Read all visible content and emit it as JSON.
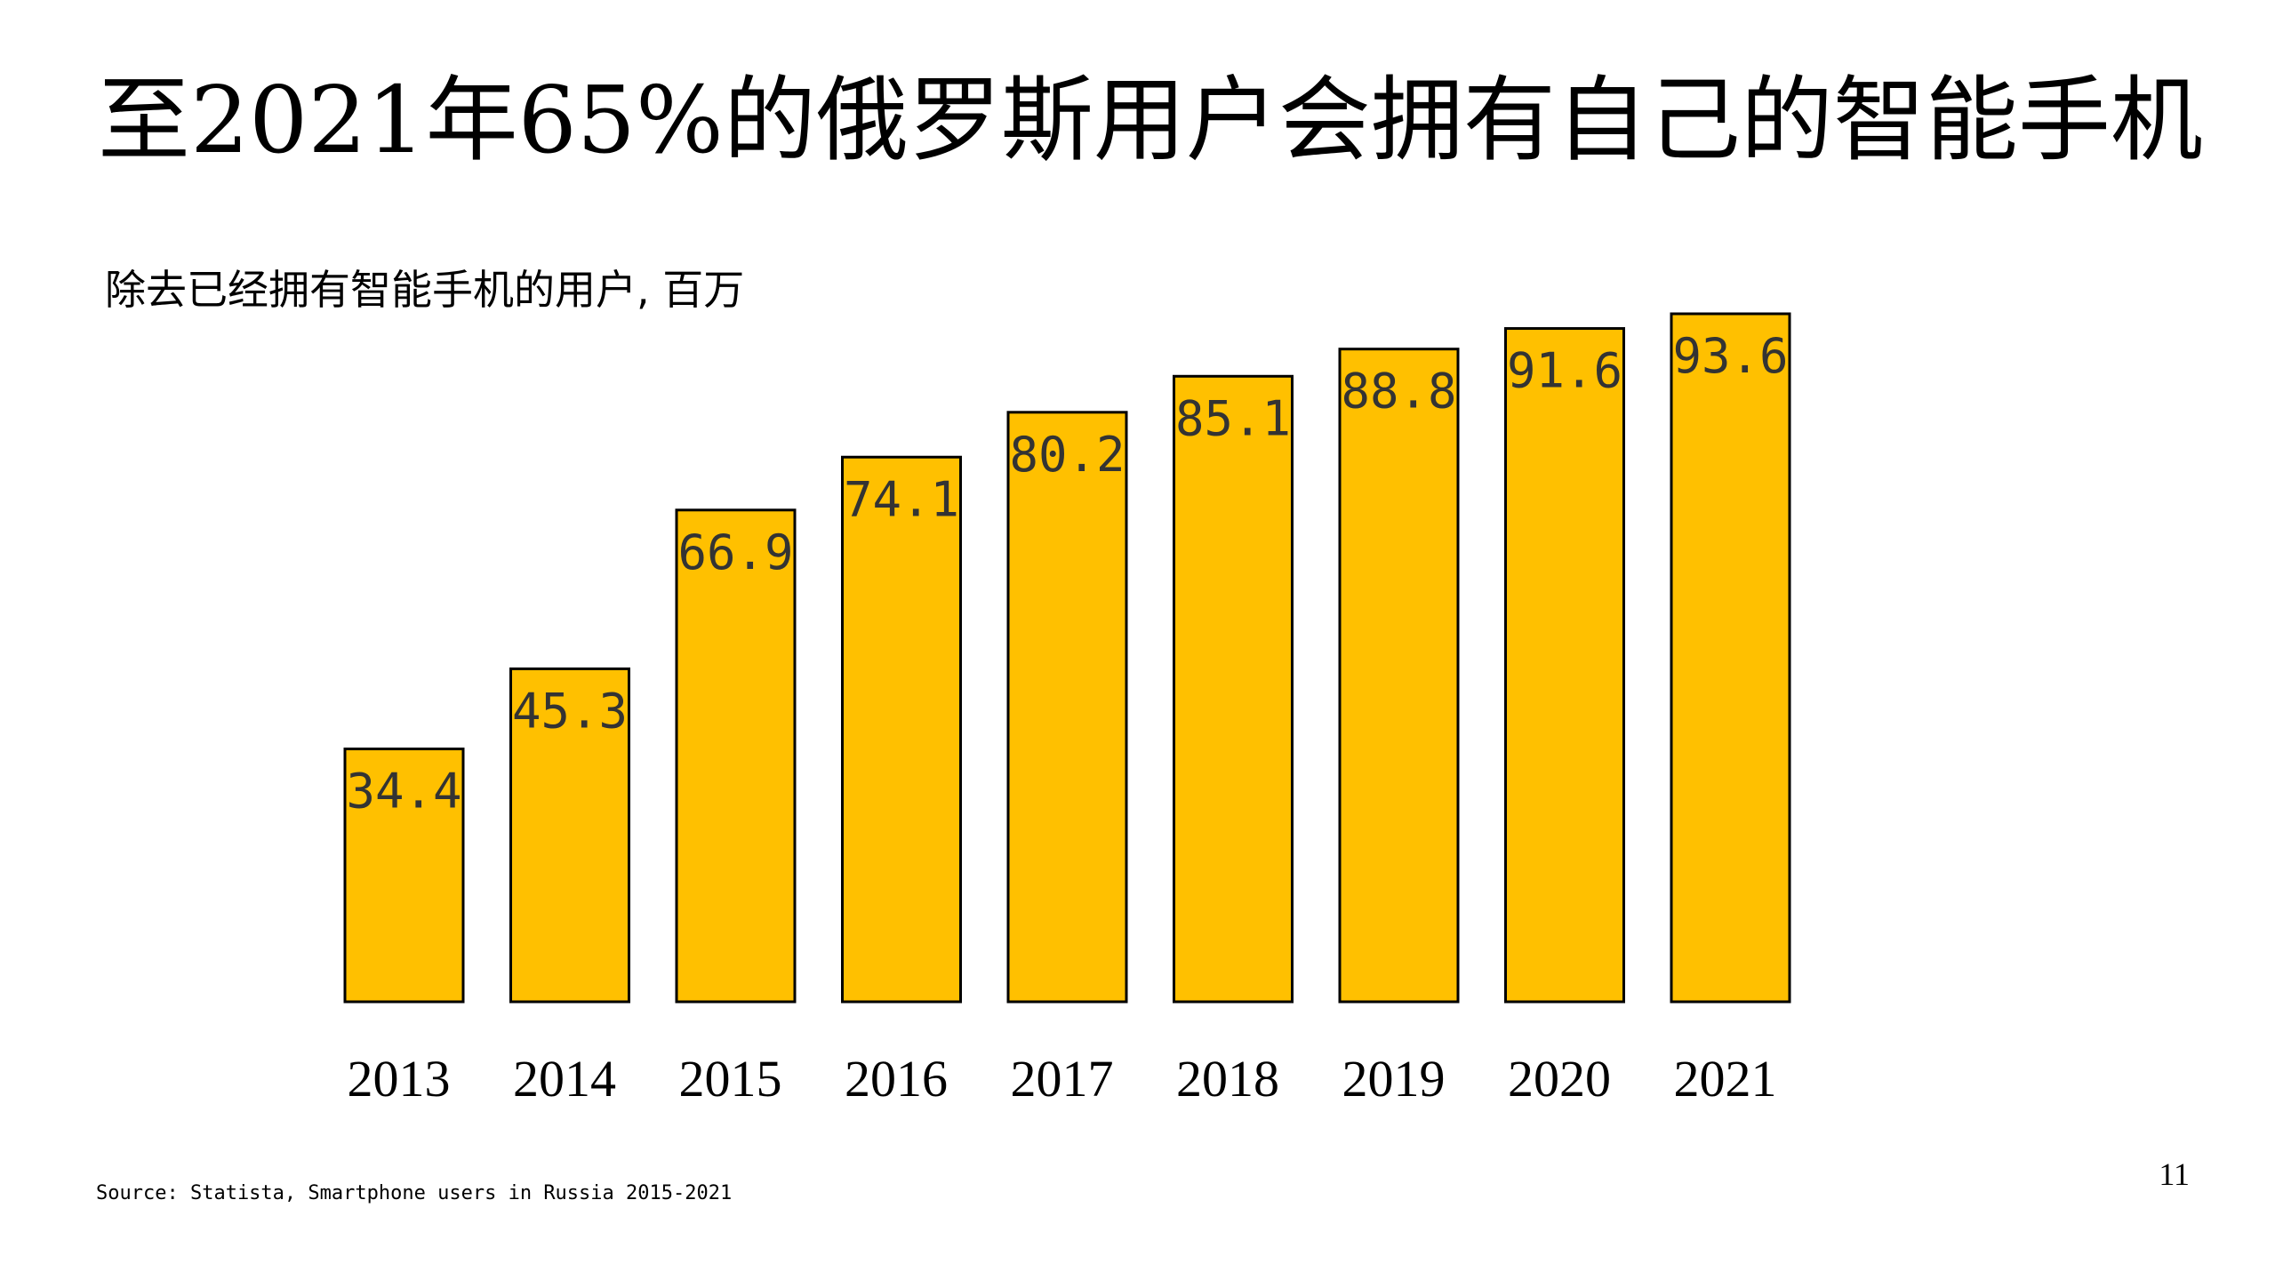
{
  "slide": {
    "title": "至2021年65%的俄罗斯用户会拥有自己的智能手机",
    "source": "Source: Statista, Smartphone users in Russia 2015-2021",
    "page_number": "11"
  },
  "chart_data": {
    "type": "bar",
    "title": "",
    "subtitle": "除去已经拥有智能手机的用户, 百万",
    "xlabel": "",
    "ylabel": "",
    "categories": [
      "2013",
      "2014",
      "2015",
      "2016",
      "2017",
      "2018",
      "2019",
      "2020",
      "2021"
    ],
    "values": [
      34.4,
      45.3,
      66.9,
      74.1,
      80.2,
      85.1,
      88.8,
      91.6,
      93.6
    ],
    "data_labels": [
      "34.4",
      "45.3",
      "66.9",
      "74.1",
      "80.2",
      "85.1",
      "88.8",
      "91.6",
      "93.6"
    ],
    "ylim": [
      0,
      93.6
    ],
    "bar_color": "#FFC000",
    "bar_border_color": "#000000",
    "grid": false,
    "legend": "none"
  }
}
